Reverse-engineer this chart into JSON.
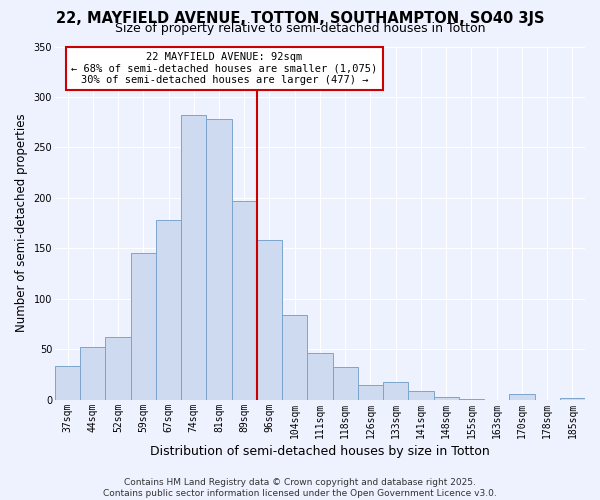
{
  "title": "22, MAYFIELD AVENUE, TOTTON, SOUTHAMPTON, SO40 3JS",
  "subtitle": "Size of property relative to semi-detached houses in Totton",
  "xlabel": "Distribution of semi-detached houses by size in Totton",
  "ylabel": "Number of semi-detached properties",
  "bar_labels": [
    "37sqm",
    "44sqm",
    "52sqm",
    "59sqm",
    "67sqm",
    "74sqm",
    "81sqm",
    "89sqm",
    "96sqm",
    "104sqm",
    "111sqm",
    "118sqm",
    "126sqm",
    "133sqm",
    "141sqm",
    "148sqm",
    "155sqm",
    "163sqm",
    "170sqm",
    "178sqm",
    "185sqm"
  ],
  "bar_values": [
    33,
    52,
    62,
    145,
    178,
    282,
    278,
    197,
    158,
    84,
    46,
    32,
    14,
    17,
    8,
    3,
    1,
    0,
    5,
    0,
    2
  ],
  "bar_color": "#cddaf0",
  "bar_edge_color": "#7ca4cc",
  "vline_color": "#cc0000",
  "annotation_title": "22 MAYFIELD AVENUE: 92sqm",
  "annotation_line2": "← 68% of semi-detached houses are smaller (1,075)",
  "annotation_line3": "30% of semi-detached houses are larger (477) →",
  "annotation_box_color": "#cc0000",
  "ylim": [
    0,
    350
  ],
  "yticks": [
    0,
    50,
    100,
    150,
    200,
    250,
    300,
    350
  ],
  "background_color": "#eef2ff",
  "grid_color": "#ffffff",
  "footer_line1": "Contains HM Land Registry data © Crown copyright and database right 2025.",
  "footer_line2": "Contains public sector information licensed under the Open Government Licence v3.0.",
  "title_fontsize": 10.5,
  "subtitle_fontsize": 9,
  "xlabel_fontsize": 9,
  "ylabel_fontsize": 8.5,
  "tick_fontsize": 7,
  "footer_fontsize": 6.5,
  "annot_fontsize": 7.5
}
